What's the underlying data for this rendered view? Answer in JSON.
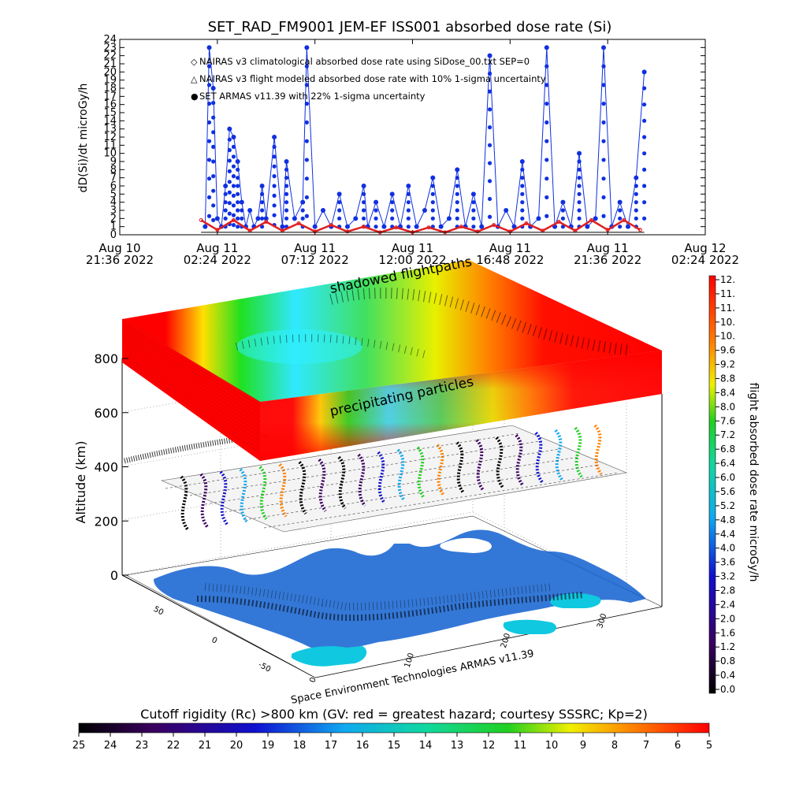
{
  "figure_title": "SET_RAD_FM9001  JEM-EF ISS001 absorbed dose rate (Si)",
  "credit": "Space Environment Technologies ARMAS v11.39",
  "colors": {
    "dose_points": "#1030e0",
    "dose_line": "#1030e0",
    "climatology": "#e02020",
    "flight_model": "#000000"
  },
  "top_chart": {
    "ylabel": "dD(Si)/dt microGy/h",
    "ylim": [
      0,
      24
    ],
    "y_ticks": [
      "0",
      "1",
      "2",
      "3",
      "4",
      "5",
      "6",
      "7",
      "8",
      "9",
      "10",
      "11",
      "12",
      "13",
      "14",
      "15",
      "16",
      "17",
      "18",
      "19",
      "20",
      "21",
      "22",
      "23",
      "24"
    ],
    "x_ticks": [
      {
        "line1": "Aug 10",
        "line2": "21:36 2022",
        "hours": 0
      },
      {
        "line1": "Aug 11",
        "line2": "02:24 2022",
        "hours": 4.8
      },
      {
        "line1": "Aug 11",
        "line2": "07:12 2022",
        "hours": 9.6
      },
      {
        "line1": "Aug 11",
        "line2": "12:00 2022",
        "hours": 14.4
      },
      {
        "line1": "Aug 11",
        "line2": "16:48 2022",
        "hours": 19.2
      },
      {
        "line1": "Aug 11",
        "line2": "21:36 2022",
        "hours": 24.0
      },
      {
        "line1": "Aug 12",
        "line2": "02:24 2022",
        "hours": 28.8
      }
    ],
    "legend": [
      {
        "marker": "◇",
        "color_key": "climatology",
        "text": "NAIRAS v3 climatological absorbed dose rate using SiDose_00.txt SEP=0"
      },
      {
        "marker": "△",
        "color_key": "flight_model",
        "text": "NAIRAS v3 flight modeled absorbed dose rate with 10% 1-sigma uncertainty"
      },
      {
        "marker": "●",
        "color_key": "dose_points",
        "text": "SET ARMAS v11.39 with 22% 1-sigma uncertainty"
      }
    ]
  },
  "chart_data": [
    {
      "type": "line",
      "title": "SET_RAD_FM9001  JEM-EF ISS001 absorbed dose rate (Si)",
      "xlabel": "",
      "ylabel": "dD(Si)/dt microGy/h",
      "x_unit": "hours since Aug 10 21:36 2022",
      "ylim": [
        0,
        24
      ],
      "series": [
        {
          "name": "SET ARMAS v11.39 with 22% 1-sigma uncertainty",
          "x": [
            4.2,
            4.4,
            4.6,
            4.8,
            5.0,
            5.2,
            5.4,
            5.6,
            5.8,
            6.0,
            6.2,
            6.4,
            6.6,
            6.8,
            7.0,
            7.2,
            7.6,
            8.0,
            8.2,
            8.6,
            9.0,
            9.2,
            9.6,
            10.0,
            10.4,
            10.8,
            11.2,
            11.6,
            12.0,
            12.2,
            12.6,
            13.0,
            13.4,
            13.8,
            14.2,
            14.6,
            15.0,
            15.4,
            15.8,
            16.2,
            16.6,
            17.0,
            17.4,
            17.8,
            18.2,
            18.6,
            19.0,
            19.4,
            19.8,
            20.2,
            20.6,
            21.0,
            21.4,
            21.8,
            22.2,
            22.6,
            23.0,
            23.4,
            23.8,
            24.2,
            24.6,
            25.0,
            25.4,
            25.8
          ],
          "y": [
            1,
            23,
            18,
            2,
            1,
            6,
            13,
            12,
            9,
            4,
            1,
            3,
            1,
            2,
            6,
            2,
            12,
            1,
            9,
            2,
            4,
            23,
            1,
            3,
            1,
            5,
            1,
            2,
            6,
            1,
            4,
            1,
            5,
            1,
            6,
            1,
            3,
            7,
            1,
            2,
            8,
            1,
            5,
            1,
            22,
            1,
            3,
            1,
            9,
            1,
            2,
            23,
            1,
            4,
            1,
            10,
            1,
            2,
            23,
            1,
            4,
            1,
            7,
            20
          ]
        },
        {
          "name": "NAIRAS v3 climatological absorbed dose rate using SiDose_00.txt SEP=0",
          "x": [
            4.0,
            4.8,
            5.6,
            6.4,
            7.2,
            8.0,
            8.8,
            9.6,
            10.4,
            11.2,
            12.0,
            12.8,
            13.6,
            14.4,
            15.2,
            16.0,
            16.8,
            17.6,
            18.4,
            19.2,
            20.0,
            20.8,
            21.6,
            22.4,
            23.2,
            24.0,
            24.8,
            25.6
          ],
          "y": [
            1.8,
            0.6,
            1.8,
            0.5,
            1.6,
            0.5,
            1.4,
            0.4,
            1.2,
            0.4,
            1.0,
            0.3,
            0.9,
            0.3,
            0.9,
            0.3,
            1.0,
            0.4,
            1.2,
            0.4,
            1.4,
            0.5,
            1.6,
            0.5,
            1.8,
            0.6,
            1.8,
            0.6
          ]
        }
      ]
    }
  ],
  "globe_panel": {
    "top_label": "shadowed flightpaths",
    "mid_label": "precipitating particles",
    "zlabel": "Altitude (km)",
    "z_ticks": [
      "0",
      "200",
      "400",
      "600",
      "800"
    ],
    "lat_ticks": [
      "50",
      "0",
      "-50"
    ],
    "lon_ticks": [
      "0",
      "100",
      "200",
      "300"
    ]
  },
  "dose_colorbar": {
    "label": "flight absorbed dose rate microGy/h",
    "ticks": [
      "12.",
      "11.",
      "11.",
      "10.",
      "10.",
      "9.6",
      "9.2",
      "8.8",
      "8.4",
      "8.0",
      "7.6",
      "7.2",
      "6.8",
      "6.4",
      "6.0",
      "5.6",
      "5.2",
      "4.8",
      "4.4",
      "4.0",
      "3.6",
      "3.2",
      "2.8",
      "2.4",
      "2.0",
      "1.6",
      "1.2",
      "0.8",
      "0.4",
      "0.0"
    ]
  },
  "rigidity_colorbar": {
    "title": "Cutoff rigidity (Rc) >800 km (GV: red = greatest hazard; courtesy SSSRC; Kp=2)",
    "ticks": [
      "25",
      "24",
      "23",
      "22",
      "21",
      "20",
      "19",
      "18",
      "17",
      "16",
      "15",
      "14",
      "13",
      "12",
      "11",
      "10",
      "9",
      "8",
      "7",
      "6",
      "5"
    ]
  }
}
